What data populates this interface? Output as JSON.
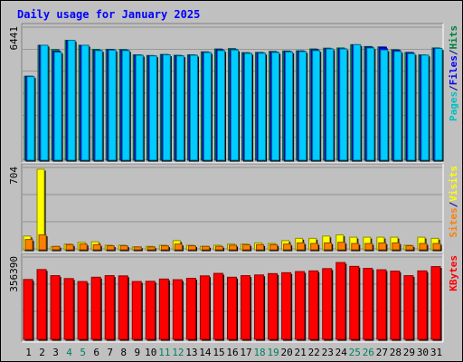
{
  "chart_data": {
    "type": "bar",
    "title": "Daily usage for January 2025",
    "categories": [
      "1",
      "2",
      "3",
      "4",
      "5",
      "6",
      "7",
      "8",
      "9",
      "10",
      "11",
      "12",
      "13",
      "14",
      "15",
      "16",
      "17",
      "18",
      "19",
      "20",
      "21",
      "22",
      "23",
      "24",
      "25",
      "26",
      "27",
      "28",
      "29",
      "30",
      "31"
    ],
    "weekend_days": [
      4,
      5,
      11,
      12,
      18,
      19,
      25,
      26
    ],
    "panels": [
      {
        "id": "hits-pages",
        "ymax_label": "6441",
        "ymax": 6441,
        "legend": [
          {
            "text": "Pages",
            "color": "#00c0c0"
          },
          {
            "text": "/",
            "color": "#000080"
          },
          {
            "text": "Files",
            "color": "#0000ff"
          },
          {
            "text": "/",
            "color": "#000080"
          },
          {
            "text": "Hits",
            "color": "#008040"
          }
        ],
        "series": [
          {
            "name": "Hits",
            "color": "#00a060",
            "values": [
              4120,
              5640,
              5430,
              5880,
              5640,
              5440,
              5440,
              5430,
              5170,
              5140,
              5190,
              5150,
              5170,
              5320,
              5460,
              5480,
              5280,
              5290,
              5340,
              5360,
              5370,
              5460,
              5500,
              5510,
              5670,
              5580,
              5560,
              5420,
              5290,
              5170,
              5510
            ]
          },
          {
            "name": "Files",
            "color": "#0000ff",
            "values": [
              4120,
              5640,
              5350,
              5880,
              5640,
              5390,
              5420,
              5400,
              5160,
              5120,
              5180,
              5130,
              5160,
              5290,
              5420,
              5430,
              5250,
              5270,
              5310,
              5330,
              5350,
              5420,
              5470,
              5470,
              5660,
              5550,
              5550,
              5390,
              5280,
              5150,
              5490
            ]
          },
          {
            "name": "Pages",
            "color": "#00ccff",
            "values": [
              4100,
              5640,
              5300,
              5880,
              5640,
              5380,
              5400,
              5380,
              5150,
              5120,
              5170,
              5120,
              5150,
              5280,
              5380,
              5410,
              5240,
              5250,
              5290,
              5310,
              5330,
              5380,
              5460,
              5460,
              5670,
              5510,
              5410,
              5340,
              5230,
              5160,
              5480
            ]
          }
        ]
      },
      {
        "id": "visits-sites",
        "ymax_label": "704",
        "ymax": 704,
        "legend": [
          {
            "text": "Sites",
            "color": "#ff8000"
          },
          {
            "text": "/",
            "color": "#000080"
          },
          {
            "text": "Visits",
            "color": "#ffff00"
          }
        ],
        "series": [
          {
            "name": "Visits",
            "color": "#ffff00",
            "values": [
              120,
              704,
              25,
              50,
              65,
              70,
              40,
              40,
              25,
              30,
              40,
              80,
              40,
              30,
              40,
              50,
              50,
              60,
              55,
              80,
              100,
              100,
              120,
              130,
              110,
              110,
              110,
              110,
              40,
              110,
              100
            ]
          },
          {
            "name": "Sites",
            "color": "#ff8000",
            "values": [
              90,
              130,
              30,
              45,
              50,
              45,
              35,
              35,
              25,
              25,
              35,
              50,
              35,
              30,
              30,
              40,
              45,
              45,
              45,
              50,
              60,
              55,
              60,
              65,
              55,
              55,
              60,
              60,
              35,
              55,
              55
            ]
          }
        ]
      },
      {
        "id": "kbytes",
        "ymax_label": "356390",
        "ymax": 356390,
        "legend": [
          {
            "text": "KBytes",
            "color": "#ff0000"
          }
        ],
        "series": [
          {
            "name": "KBytes",
            "color": "#ff0000",
            "values": [
              265000,
              309000,
              282000,
              269000,
              256000,
              275000,
              282000,
              281000,
              256000,
              257000,
              267000,
              264000,
              270000,
              281000,
              292000,
              275000,
              282000,
              285000,
              291000,
              295000,
              300000,
              303000,
              313000,
              340000,
              323000,
              314000,
              308000,
              302000,
              282000,
              303000,
              322000
            ]
          }
        ]
      }
    ]
  }
}
